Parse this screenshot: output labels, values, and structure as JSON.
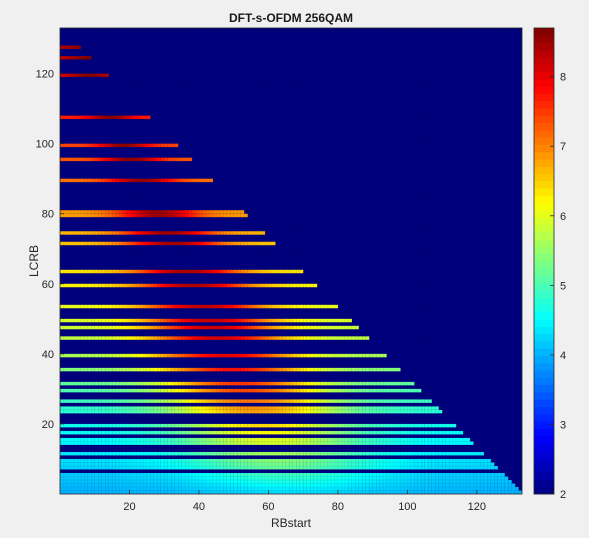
{
  "chart_data": {
    "type": "heatmap",
    "title": "DFT-s-OFDM 256QAM",
    "xlabel": "RBstart",
    "ylabel": "LCRB",
    "xlim": [
      0,
      133
    ],
    "ylim": [
      0,
      133
    ],
    "x_ticks": [
      20,
      40,
      60,
      80,
      100,
      120
    ],
    "y_ticks": [
      20,
      40,
      60,
      80,
      100,
      120
    ],
    "colorbar": {
      "min": 2.0,
      "max": 8.7,
      "ticks": [
        2,
        3,
        4,
        5,
        6,
        7,
        8
      ],
      "colormap": "jet"
    },
    "grid_size": 133,
    "valid_region": "RBstart + LCRB <= 133",
    "lcrb_values": [
      1,
      2,
      3,
      4,
      5,
      6,
      8,
      9,
      10,
      12,
      15,
      16,
      18,
      20,
      24,
      25,
      27,
      30,
      32,
      36,
      40,
      45,
      48,
      50,
      54,
      60,
      64,
      72,
      75,
      80,
      81,
      90,
      96,
      100,
      108,
      120,
      125,
      128
    ],
    "peak_profile": {
      "description": "value of a row peaks around RBstart = 66 - LCRB/2, falls off toward both ends",
      "peak_rbstart_approx": [
        [
          1,
          66
        ],
        [
          20,
          58
        ],
        [
          40,
          47
        ],
        [
          60,
          38
        ],
        [
          80,
          28
        ],
        [
          100,
          18
        ],
        [
          120,
          8
        ]
      ],
      "peak_value_approx": [
        [
          1,
          4.3
        ],
        [
          10,
          5.4
        ],
        [
          20,
          6.4
        ],
        [
          30,
          7.4
        ],
        [
          40,
          8.0
        ],
        [
          60,
          8.4
        ],
        [
          80,
          8.5
        ],
        [
          100,
          8.6
        ],
        [
          128,
          8.7
        ]
      ],
      "row_base_approx": [
        [
          1,
          4.0
        ],
        [
          10,
          4.3
        ],
        [
          20,
          4.6
        ],
        [
          30,
          5.0
        ],
        [
          40,
          5.6
        ],
        [
          60,
          6.2
        ],
        [
          80,
          6.8
        ],
        [
          100,
          7.4
        ],
        [
          128,
          8.3
        ]
      ]
    }
  }
}
